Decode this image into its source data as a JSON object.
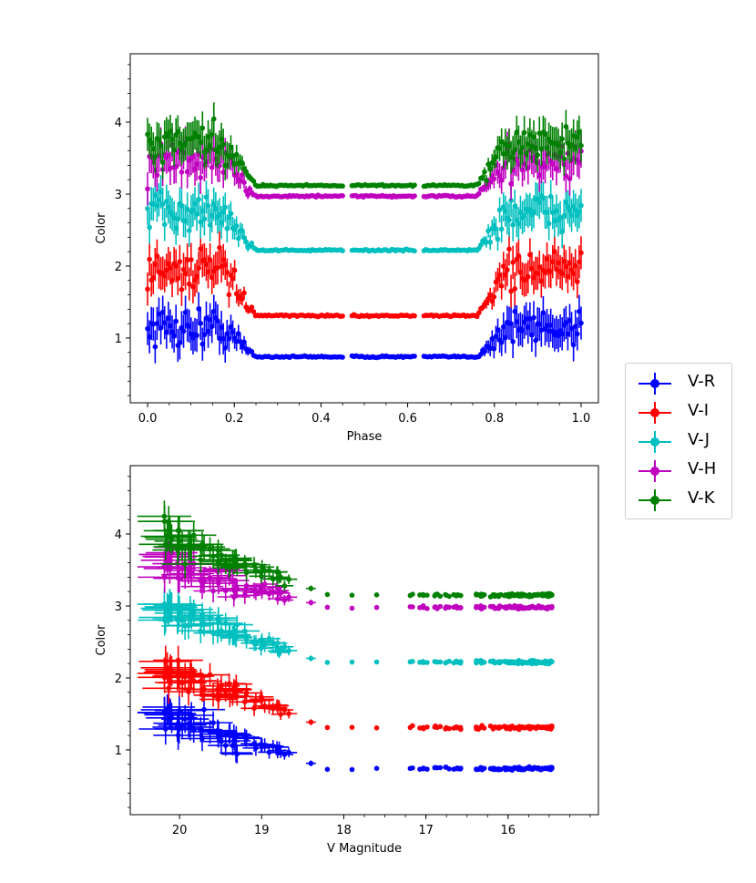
{
  "chart_data": [
    {
      "type": "scatter",
      "name": "top",
      "xlabel": "Phase",
      "ylabel": "Color",
      "xlim": [
        -0.04,
        1.04
      ],
      "ylim": [
        0.1,
        4.95
      ],
      "xticks": [
        0.0,
        0.2,
        0.4,
        0.6,
        0.8,
        1.0
      ],
      "xtick_labels": [
        "0.0",
        "0.2",
        "0.4",
        "0.6",
        "0.8",
        "1.0"
      ],
      "yticks": [
        1,
        2,
        3,
        4
      ],
      "ytick_labels": [
        "1",
        "2",
        "3",
        "4"
      ],
      "series": [
        {
          "name": "V-R",
          "color": "#0000ff",
          "plateau": 0.74,
          "max": 1.15
        },
        {
          "name": "V-I",
          "color": "#ff0000",
          "plateau": 1.31,
          "max": 1.95
        },
        {
          "name": "V-J",
          "color": "#00bfbf",
          "plateau": 2.22,
          "max": 2.75
        },
        {
          "name": "V-H",
          "color": "#bf00bf",
          "plateau": 2.97,
          "max": 3.45
        },
        {
          "name": "V-K",
          "color": "#008000",
          "plateau": 3.12,
          "max": 3.7
        }
      ]
    },
    {
      "type": "scatter",
      "name": "bottom",
      "xlabel": "V Magnitude",
      "ylabel": "Color",
      "xlim": [
        20.6,
        14.9
      ],
      "ylim": [
        0.1,
        4.95
      ],
      "x_range": [
        15.45,
        20.2
      ],
      "xticks": [
        20,
        19,
        18,
        17,
        16
      ],
      "xtick_labels": [
        "20",
        "19",
        "18",
        "17",
        "16"
      ],
      "yticks": [
        1,
        2,
        3,
        4
      ],
      "ytick_labels": [
        "1",
        "2",
        "3",
        "4"
      ],
      "series": [
        {
          "name": "V-R",
          "color": "#0000ff",
          "faint": 1.5,
          "bright": 0.74
        },
        {
          "name": "V-I",
          "color": "#ff0000",
          "faint": 2.15,
          "bright": 1.31
        },
        {
          "name": "V-J",
          "color": "#00bfbf",
          "faint": 2.95,
          "bright": 2.22
        },
        {
          "name": "V-H",
          "color": "#bf00bf",
          "faint": 3.6,
          "bright": 2.98
        },
        {
          "name": "V-K",
          "color": "#008000",
          "faint": 3.95,
          "bright": 3.15
        }
      ]
    }
  ],
  "legend": {
    "items": [
      {
        "label": "V-R",
        "color": "#0000ff"
      },
      {
        "label": "V-I",
        "color": "#ff0000"
      },
      {
        "label": "V-J",
        "color": "#00bfbf"
      },
      {
        "label": "V-H",
        "color": "#bf00bf"
      },
      {
        "label": "V-K",
        "color": "#008000"
      }
    ]
  }
}
